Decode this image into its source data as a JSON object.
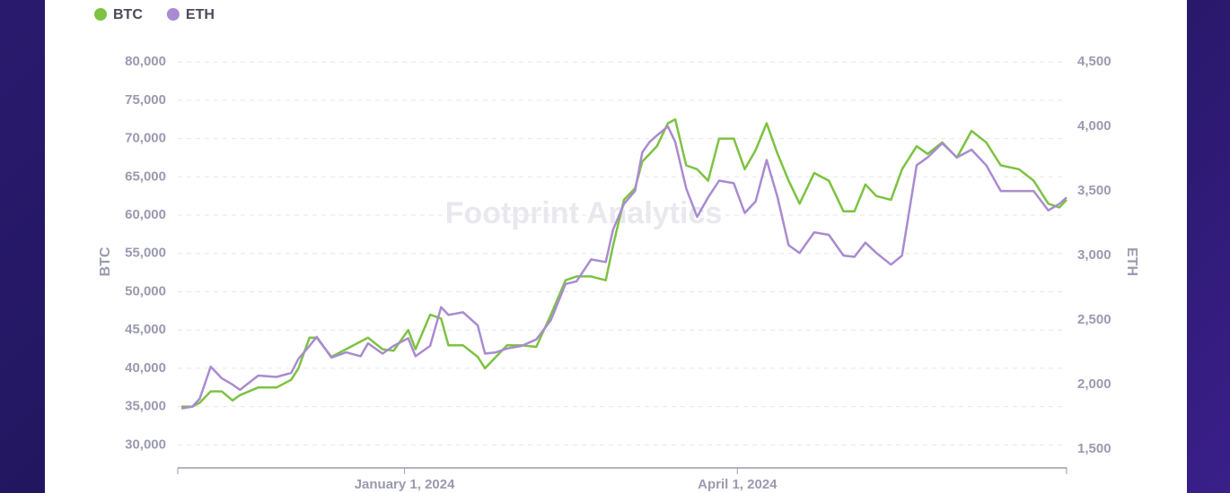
{
  "chart_data": {
    "type": "line",
    "watermark": "Footprint Analytics",
    "y_label": "BTC",
    "y2_label": "ETH",
    "xlim": [
      "2023-10-31",
      "2024-06-30"
    ],
    "xticks": [
      {
        "value": "2024-01-01",
        "label": "January 1, 2024"
      },
      {
        "value": "2024-04-01",
        "label": "April 1, 2024"
      }
    ],
    "ylim": [
      27000,
      80600
    ],
    "yticks": [
      {
        "value": 30000,
        "label": "30,000"
      },
      {
        "value": 35000,
        "label": "35,000"
      },
      {
        "value": 40000,
        "label": "40,000"
      },
      {
        "value": 45000,
        "label": "45,000"
      },
      {
        "value": 50000,
        "label": "50,000"
      },
      {
        "value": 55000,
        "label": "55,000"
      },
      {
        "value": 60000,
        "label": "60,000"
      },
      {
        "value": 65000,
        "label": "65,000"
      },
      {
        "value": 70000,
        "label": "70,000"
      },
      {
        "value": 75000,
        "label": "75,000"
      },
      {
        "value": 80000,
        "label": "80,000"
      }
    ],
    "y2lim": [
      1355,
      4535
    ],
    "y2ticks": [
      {
        "value": 1500,
        "label": "1,500"
      },
      {
        "value": 2000,
        "label": "2,000"
      },
      {
        "value": 2500,
        "label": "2,500"
      },
      {
        "value": 3000,
        "label": "3,000"
      },
      {
        "value": 3500,
        "label": "3,500"
      },
      {
        "value": 4000,
        "label": "4,000"
      },
      {
        "value": 4500,
        "label": "4,500"
      }
    ],
    "grid": true,
    "legend": "top-left",
    "x": [
      "2023-11-01",
      "2023-11-04",
      "2023-11-06",
      "2023-11-09",
      "2023-11-12",
      "2023-11-15",
      "2023-11-17",
      "2023-11-22",
      "2023-11-27",
      "2023-12-01",
      "2023-12-03",
      "2023-12-06",
      "2023-12-08",
      "2023-12-12",
      "2023-12-16",
      "2023-12-20",
      "2023-12-22",
      "2023-12-26",
      "2023-12-29",
      "2024-01-02",
      "2024-01-04",
      "2024-01-08",
      "2024-01-11",
      "2024-01-13",
      "2024-01-17",
      "2024-01-21",
      "2024-01-23",
      "2024-01-26",
      "2024-01-29",
      "2024-02-02",
      "2024-02-06",
      "2024-02-10",
      "2024-02-14",
      "2024-02-17",
      "2024-02-21",
      "2024-02-25",
      "2024-02-27",
      "2024-03-01",
      "2024-03-04",
      "2024-03-06",
      "2024-03-08",
      "2024-03-10",
      "2024-03-13",
      "2024-03-15",
      "2024-03-18",
      "2024-03-21",
      "2024-03-24",
      "2024-03-27",
      "2024-03-31",
      "2024-04-03",
      "2024-04-06",
      "2024-04-09",
      "2024-04-12",
      "2024-04-15",
      "2024-04-18",
      "2024-04-22",
      "2024-04-26",
      "2024-04-30",
      "2024-05-03",
      "2024-05-06",
      "2024-05-09",
      "2024-05-13",
      "2024-05-16",
      "2024-05-20",
      "2024-05-23",
      "2024-05-27",
      "2024-05-31",
      "2024-06-04",
      "2024-06-08",
      "2024-06-12",
      "2024-06-17",
      "2024-06-21",
      "2024-06-25",
      "2024-06-28",
      "2024-06-30"
    ],
    "series": [
      {
        "name": "BTC",
        "color": "#7dc242",
        "axis": "y",
        "values": [
          35000,
          35000,
          35500,
          37000,
          37000,
          35800,
          36500,
          37500,
          37500,
          38500,
          40000,
          44000,
          44000,
          41500,
          42500,
          43500,
          44000,
          42500,
          42300,
          45000,
          42500,
          47000,
          46500,
          43000,
          43000,
          41500,
          40000,
          41500,
          43000,
          43000,
          42800,
          47000,
          51500,
          52000,
          52000,
          51500,
          56000,
          62000,
          63500,
          67000,
          68000,
          69000,
          72000,
          72500,
          66500,
          66000,
          64500,
          70000,
          70000,
          66000,
          68500,
          72000,
          68000,
          64500,
          61500,
          65500,
          64500,
          60500,
          60500,
          64000,
          62500,
          62000,
          66000,
          69000,
          68000,
          69500,
          67500,
          71000,
          69500,
          66500,
          66000,
          64500,
          61500,
          61000,
          62000
        ]
      },
      {
        "name": "ETH",
        "color": "#a98bd0",
        "axis": "y2",
        "values": [
          1816,
          1830,
          1890,
          2139,
          2050,
          2000,
          1960,
          2070,
          2060,
          2090,
          2200,
          2300,
          2370,
          2210,
          2250,
          2220,
          2320,
          2240,
          2300,
          2360,
          2220,
          2300,
          2600,
          2540,
          2560,
          2460,
          2240,
          2250,
          2280,
          2300,
          2350,
          2500,
          2780,
          2800,
          2970,
          2950,
          3200,
          3400,
          3500,
          3800,
          3880,
          3930,
          4000,
          3880,
          3520,
          3300,
          3450,
          3580,
          3560,
          3330,
          3420,
          3740,
          3450,
          3080,
          3020,
          3180,
          3160,
          3000,
          2990,
          3100,
          3020,
          2930,
          3000,
          3700,
          3760,
          3870,
          3760,
          3820,
          3700,
          3500,
          3500,
          3500,
          3350,
          3400,
          3450
        ]
      }
    ]
  }
}
